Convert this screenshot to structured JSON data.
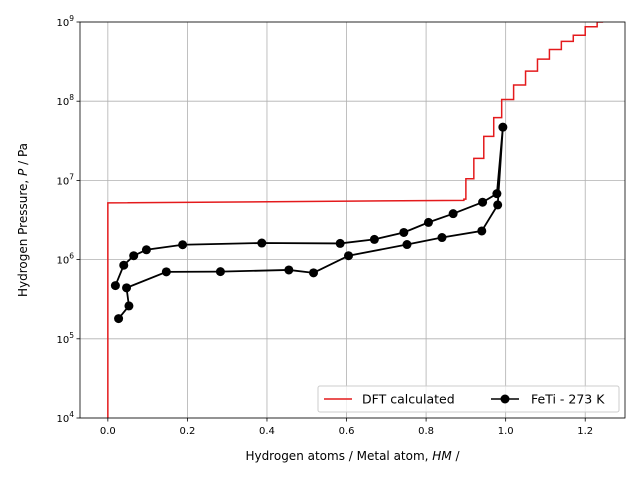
{
  "chart_data": {
    "type": "line",
    "xlabel_text": "Hydrogen atoms / Metal atom, ",
    "xlabel_italic": "HM",
    "xlabel_suffix": " /",
    "ylabel_text": "Hydrogen Pressure, ",
    "ylabel_italic": "P",
    "ylabel_suffix": " / Pa",
    "xlim": [
      -0.07,
      1.3
    ],
    "ylim": [
      10000,
      1000000000
    ],
    "yscale": "log",
    "grid": true,
    "legend_position": "lower-right",
    "x_ticks": [
      {
        "value": 0.0,
        "label": "0.0"
      },
      {
        "value": 0.2,
        "label": "0.2"
      },
      {
        "value": 0.4,
        "label": "0.4"
      },
      {
        "value": 0.6,
        "label": "0.6"
      },
      {
        "value": 0.8,
        "label": "0.8"
      },
      {
        "value": 1.0,
        "label": "1.0"
      },
      {
        "value": 1.2,
        "label": "1.2"
      }
    ],
    "y_ticks": [
      {
        "value": 10000,
        "base": "10",
        "exp": "4"
      },
      {
        "value": 100000,
        "base": "10",
        "exp": "5"
      },
      {
        "value": 1000000,
        "base": "10",
        "exp": "6"
      },
      {
        "value": 10000000,
        "base": "10",
        "exp": "7"
      },
      {
        "value": 100000000,
        "base": "10",
        "exp": "8"
      },
      {
        "value": 1000000000,
        "base": "10",
        "exp": "9"
      }
    ],
    "series": [
      {
        "name": "DFT calculated",
        "color": "#e41a1c",
        "marker": "none",
        "points": [
          [
            0.0,
            10000
          ],
          [
            0.0,
            5200000
          ],
          [
            0.895,
            5600000
          ],
          [
            0.895,
            5800000
          ],
          [
            0.9,
            5800000
          ],
          [
            0.9,
            10500000
          ],
          [
            0.92,
            10500000
          ],
          [
            0.92,
            19000000
          ],
          [
            0.945,
            19000000
          ],
          [
            0.945,
            36000000
          ],
          [
            0.97,
            36000000
          ],
          [
            0.97,
            62000000
          ],
          [
            0.99,
            62000000
          ],
          [
            0.99,
            105000000
          ],
          [
            1.02,
            105000000
          ],
          [
            1.02,
            160000000
          ],
          [
            1.05,
            160000000
          ],
          [
            1.05,
            240000000
          ],
          [
            1.08,
            240000000
          ],
          [
            1.08,
            340000000
          ],
          [
            1.11,
            340000000
          ],
          [
            1.11,
            450000000
          ],
          [
            1.14,
            450000000
          ],
          [
            1.14,
            570000000
          ],
          [
            1.17,
            570000000
          ],
          [
            1.17,
            680000000
          ],
          [
            1.2,
            680000000
          ],
          [
            1.2,
            870000000
          ],
          [
            1.23,
            870000000
          ],
          [
            1.23,
            1000000000
          ],
          [
            1.245,
            1000000000
          ]
        ]
      },
      {
        "name": "FeTi - 273 K",
        "color": "#000000",
        "marker": "circle",
        "points": [
          [
            0.027,
            180000
          ],
          [
            0.053,
            260000
          ],
          [
            0.047,
            440000
          ],
          [
            0.147,
            700000
          ],
          [
            0.283,
            705000
          ],
          [
            0.455,
            740000
          ],
          [
            0.517,
            680000
          ],
          [
            0.605,
            1120000
          ],
          [
            0.752,
            1550000
          ],
          [
            0.84,
            1900000
          ],
          [
            0.94,
            2300000
          ],
          [
            0.98,
            4900000
          ],
          [
            0.993,
            47000000
          ],
          [
            0.978,
            6800000
          ],
          [
            0.942,
            5300000
          ],
          [
            0.868,
            3800000
          ],
          [
            0.806,
            2950000
          ],
          [
            0.744,
            2200000
          ],
          [
            0.67,
            1800000
          ],
          [
            0.584,
            1600000
          ],
          [
            0.387,
            1620000
          ],
          [
            0.188,
            1540000
          ],
          [
            0.097,
            1330000
          ],
          [
            0.065,
            1120000
          ],
          [
            0.04,
            850000
          ],
          [
            0.019,
            470000
          ]
        ]
      }
    ]
  }
}
